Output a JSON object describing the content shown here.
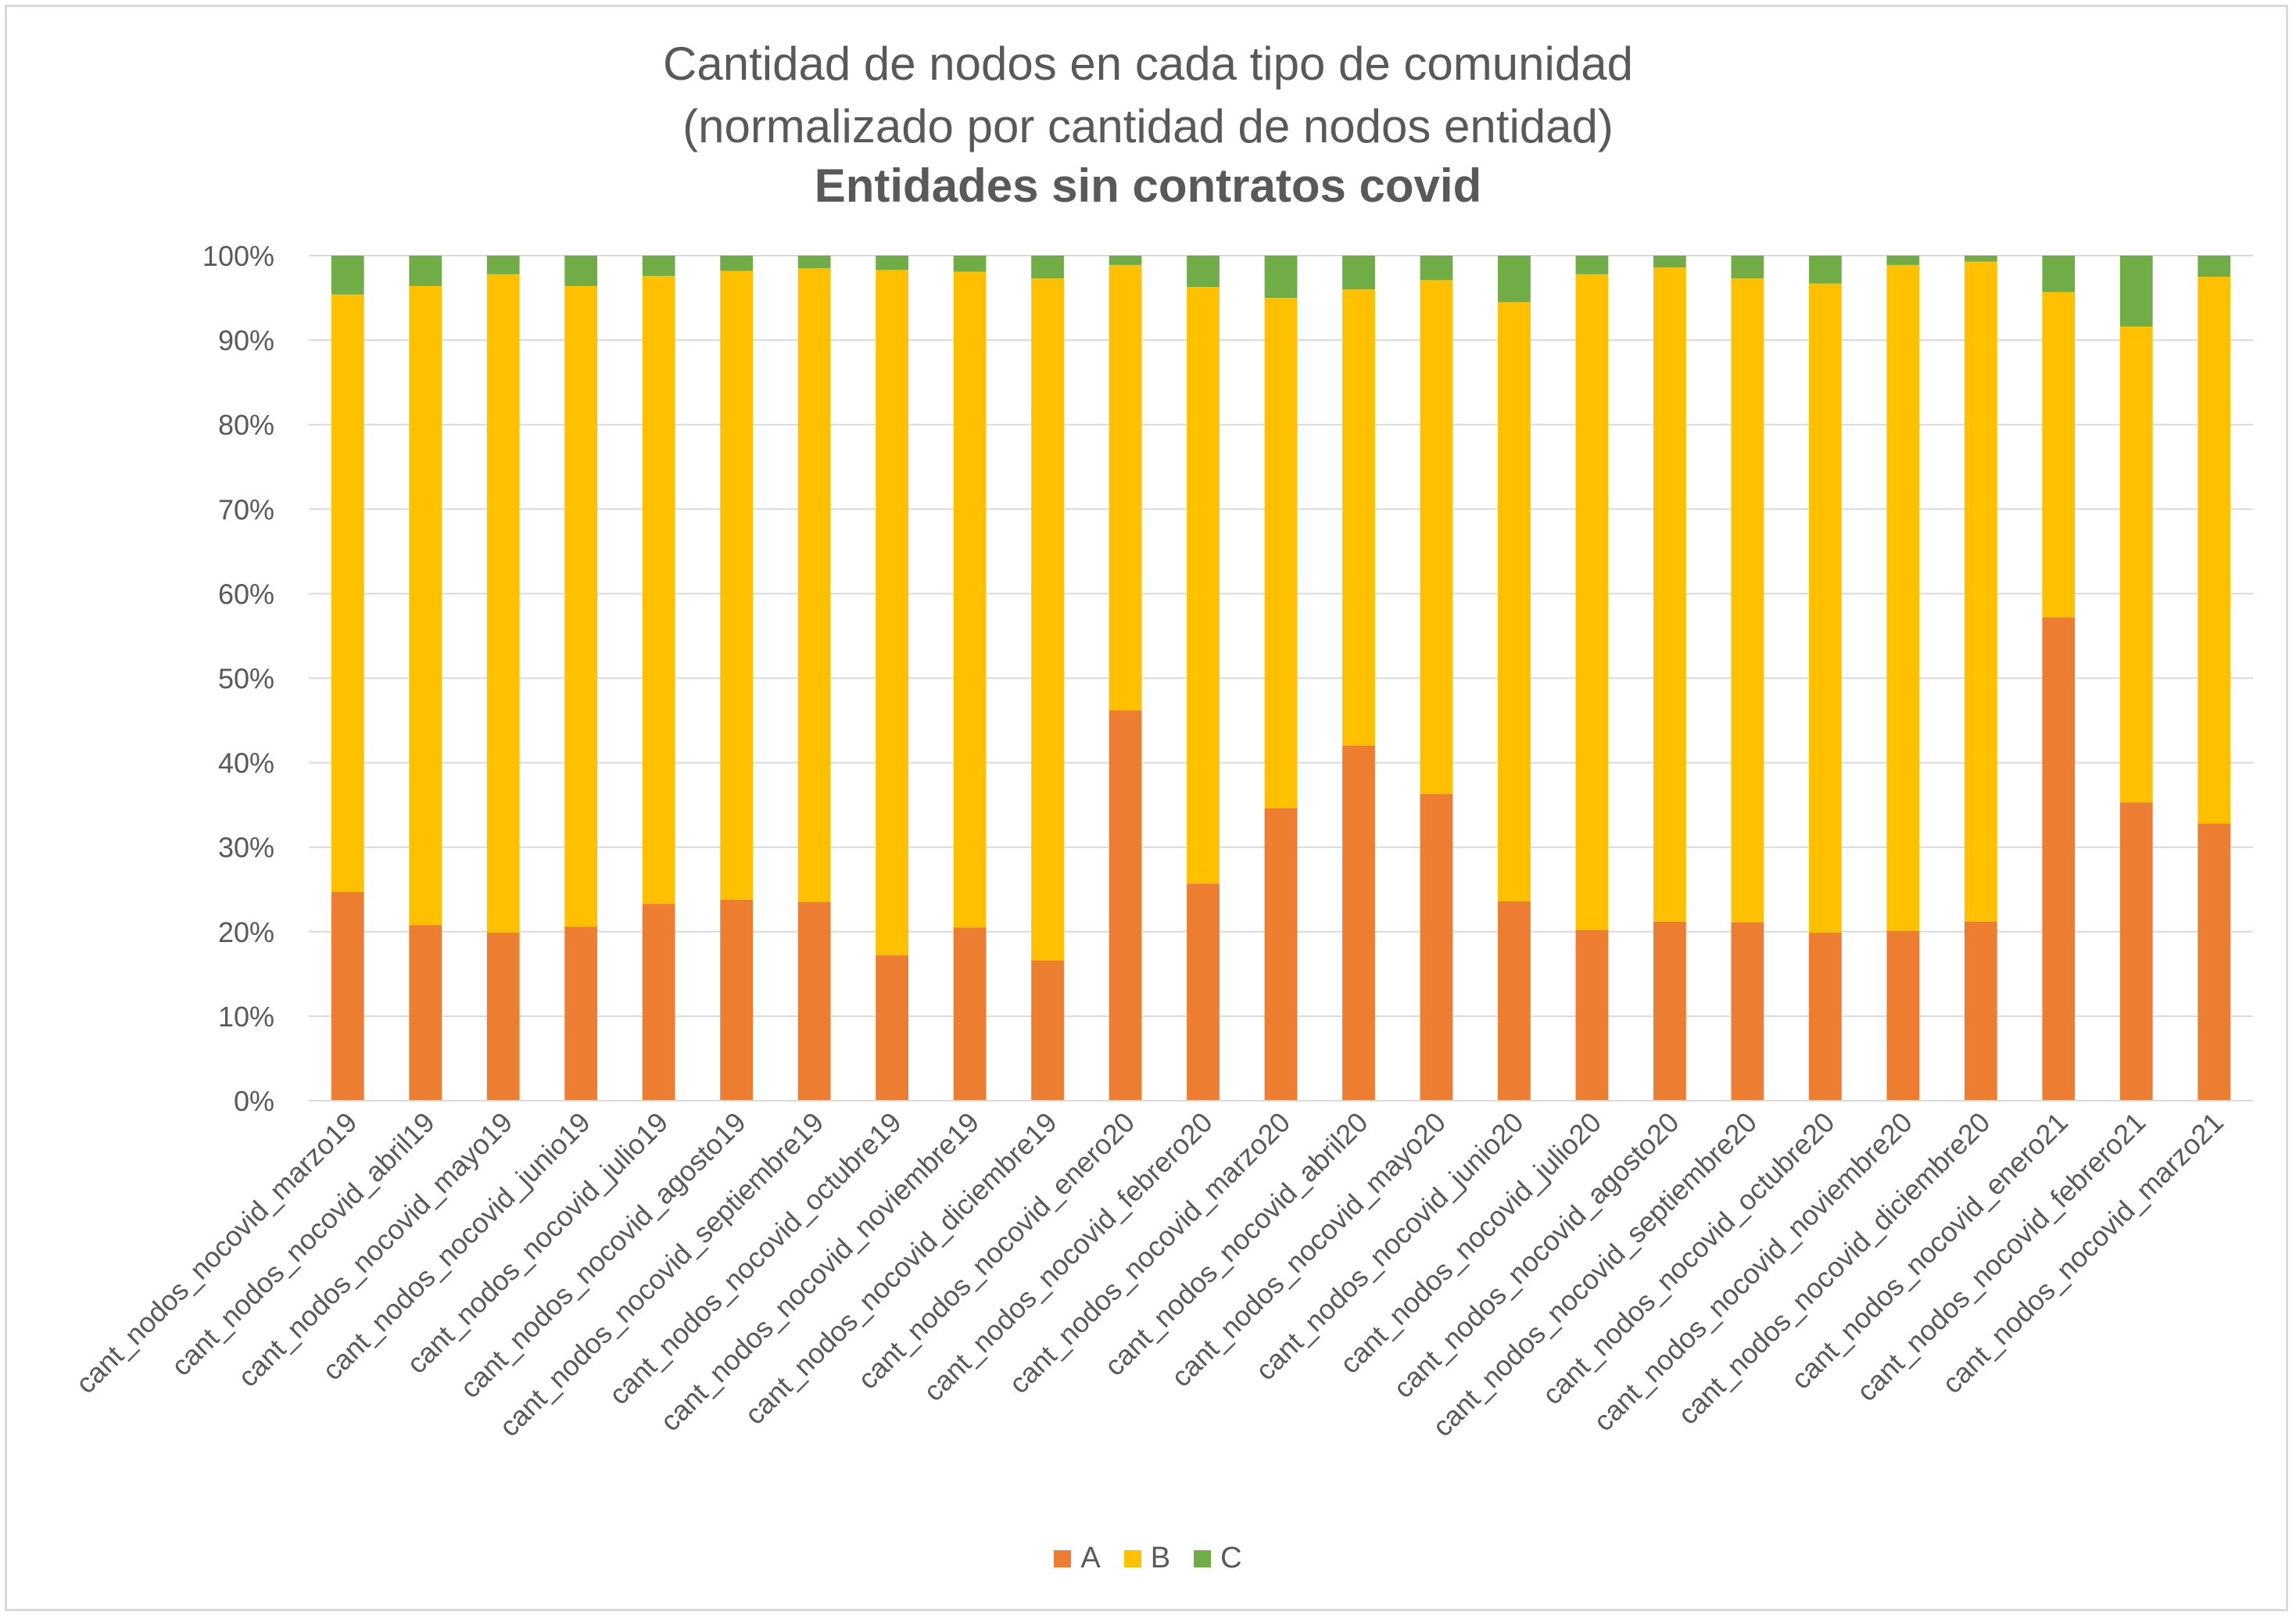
{
  "chart_data": {
    "type": "bar",
    "stacked": true,
    "title_lines": [
      "Cantidad de nodos en cada tipo de comunidad",
      "(normalizado por cantidad de nodos entidad)"
    ],
    "subtitle": "Entidades sin contratos covid",
    "xlabel": "",
    "ylabel": "",
    "ylim": [
      0,
      100
    ],
    "yticks": [
      "0%",
      "10%",
      "20%",
      "30%",
      "40%",
      "50%",
      "60%",
      "70%",
      "80%",
      "90%",
      "100%"
    ],
    "grid": true,
    "legend_position": "bottom",
    "categories": [
      "cant_nodos_nocovid_marzo19",
      "cant_nodos_nocovid_abril19",
      "cant_nodos_nocovid_mayo19",
      "cant_nodos_nocovid_junio19",
      "cant_nodos_nocovid_julio19",
      "cant_nodos_nocovid_agosto19",
      "cant_nodos_nocovid_septiembre19",
      "cant_nodos_nocovid_octubre19",
      "cant_nodos_nocovid_noviembre19",
      "cant_nodos_nocovid_diciembre19",
      "cant_nodos_nocovid_enero20",
      "cant_nodos_nocovid_febrero20",
      "cant_nodos_nocovid_marzo20",
      "cant_nodos_nocovid_abril20",
      "cant_nodos_nocovid_mayo20",
      "cant_nodos_nocovid_junio20",
      "cant_nodos_nocovid_julio20",
      "cant_nodos_nocovid_agosto20",
      "cant_nodos_nocovid_septiembre20",
      "cant_nodos_nocovid_octubre20",
      "cant_nodos_nocovid_noviembre20",
      "cant_nodos_nocovid_diciembre20",
      "cant_nodos_nocovid_enero21",
      "cant_nodos_nocovid_febrero21",
      "cant_nodos_nocovid_marzo21"
    ],
    "series": [
      {
        "name": "A",
        "color": "#ed7d31",
        "values": [
          24.7,
          20.8,
          19.9,
          20.6,
          23.3,
          23.8,
          23.5,
          17.2,
          20.5,
          16.6,
          46.2,
          25.7,
          34.6,
          42.0,
          36.3,
          23.6,
          20.2,
          21.2,
          21.1,
          19.9,
          20.1,
          21.2,
          57.2,
          35.3,
          32.8
        ]
      },
      {
        "name": "B",
        "color": "#ffc000",
        "values": [
          70.7,
          75.6,
          77.9,
          75.8,
          74.3,
          74.4,
          75.0,
          81.1,
          77.6,
          80.7,
          52.7,
          70.6,
          60.4,
          54.0,
          60.8,
          70.9,
          77.6,
          77.4,
          76.2,
          76.8,
          78.8,
          78.1,
          38.5,
          56.3,
          64.7
        ]
      },
      {
        "name": "C",
        "color": "#70ad47",
        "values": [
          4.6,
          3.6,
          2.2,
          3.6,
          2.4,
          1.8,
          1.5,
          1.7,
          1.9,
          2.7,
          1.1,
          3.7,
          5.0,
          4.0,
          2.9,
          5.5,
          2.2,
          1.4,
          2.7,
          3.3,
          1.1,
          0.7,
          4.3,
          8.4,
          2.5
        ]
      }
    ]
  }
}
